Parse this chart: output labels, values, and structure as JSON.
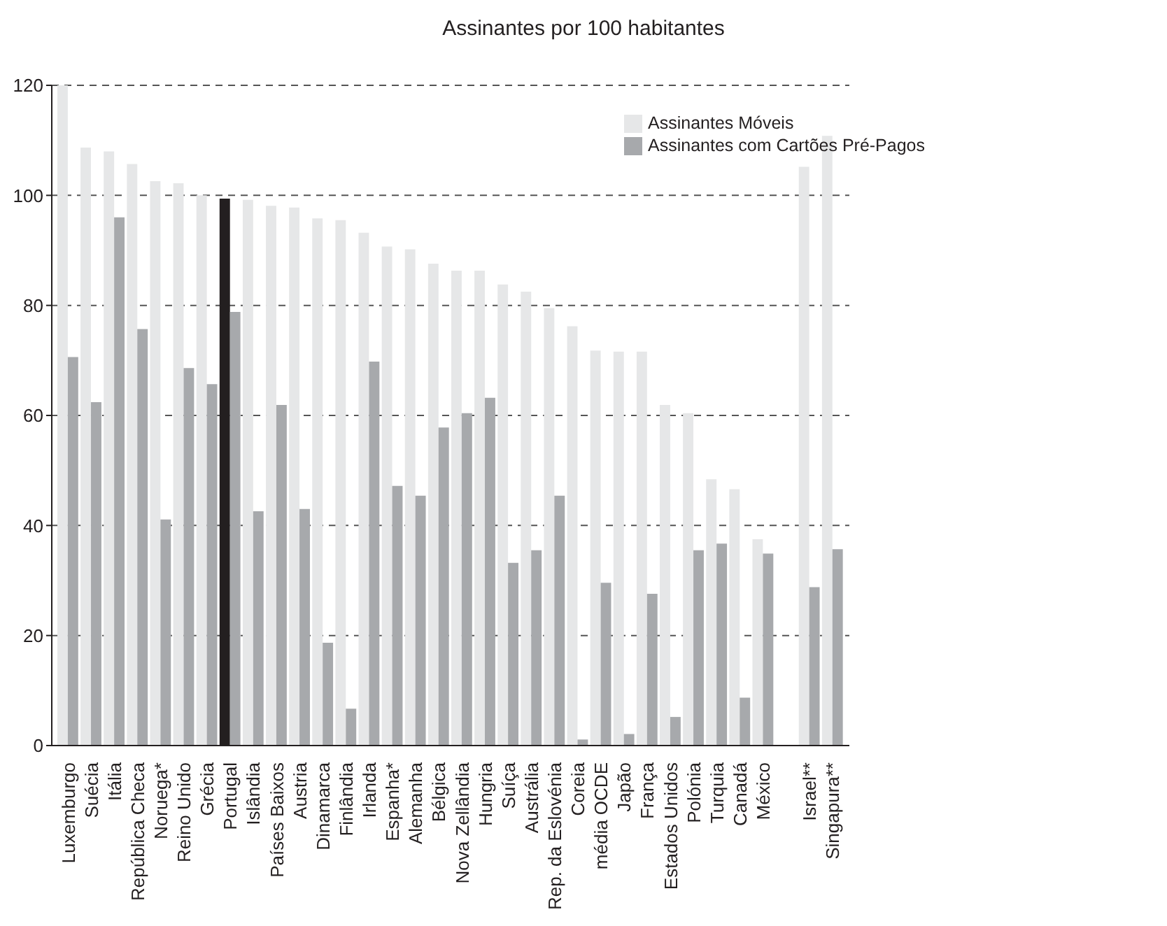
{
  "chart_data": {
    "type": "bar",
    "title": "Assinantes por 100 habitantes",
    "categories": [
      "Luxemburgo",
      "Suécia",
      "Itália",
      "República Checa",
      "Noruega*",
      "Reino Unido",
      "Grécia",
      "Portugal",
      "Islândia",
      "Países Baixos",
      "Austria",
      "Dinamarca",
      "Finlândia",
      "Irlanda",
      "Espanha*",
      "Alemanha",
      "Bélgica",
      "Nova Zellândia",
      "Hungria",
      "Suíça",
      "Austrália",
      "Rep. da Eslovénia",
      "Coreia",
      "média OCDE",
      "Japão",
      "França",
      "Estados Unidos",
      "Polónia",
      "Turquia",
      "Canadá",
      "México",
      null,
      "Israel**",
      "Singapura**"
    ],
    "series": [
      {
        "name": "Assinantes Móveis",
        "color": "#e6e7e8",
        "colors": [
          "#e6e7e8",
          "#e6e7e8",
          "#e6e7e8",
          "#e6e7e8",
          "#e6e7e8",
          "#e6e7e8",
          "#e6e7e8",
          "#231f20",
          "#e6e7e8",
          "#e6e7e8",
          "#e6e7e8",
          "#e6e7e8",
          "#e6e7e8",
          "#e6e7e8",
          "#e6e7e8",
          "#e6e7e8",
          "#e6e7e8",
          "#e6e7e8",
          "#e6e7e8",
          "#e6e7e8",
          "#e6e7e8",
          "#e6e7e8",
          "#e6e7e8",
          "#e6e7e8",
          "#e6e7e8",
          "#e6e7e8",
          "#e6e7e8",
          "#e6e7e8",
          "#e6e7e8",
          "#e6e7e8",
          "#e6e7e8",
          "#e6e7e8",
          "#e6e7e8",
          "#e6e7e8"
        ],
        "values": [
          120,
          108.7,
          108.0,
          105.7,
          102.6,
          102.2,
          100.0,
          99.4,
          99.2,
          98.1,
          97.8,
          95.8,
          95.5,
          93.2,
          90.7,
          90.2,
          87.6,
          86.3,
          86.3,
          83.8,
          82.5,
          79.5,
          76.2,
          71.8,
          71.6,
          71.6,
          61.9,
          60.4,
          48.4,
          46.6,
          37.5,
          null,
          105.2,
          110.8
        ]
      },
      {
        "name": "Assinantes com Cartões Pré-Pagos",
        "color": "#a7a9ac",
        "values": [
          70.6,
          62.4,
          96.0,
          75.7,
          41.1,
          68.6,
          65.7,
          78.8,
          42.6,
          61.9,
          43.0,
          18.7,
          6.7,
          69.8,
          47.2,
          45.4,
          57.8,
          60.4,
          63.2,
          33.2,
          35.5,
          45.4,
          1.1,
          29.6,
          2.1,
          27.6,
          5.2,
          35.5,
          36.7,
          8.7,
          34.9,
          null,
          28.8,
          35.7
        ]
      }
    ],
    "ylim": [
      0,
      120
    ],
    "yticks": [
      0,
      20,
      40,
      60,
      80,
      100,
      120
    ],
    "grid": "y",
    "legend": "top right"
  }
}
